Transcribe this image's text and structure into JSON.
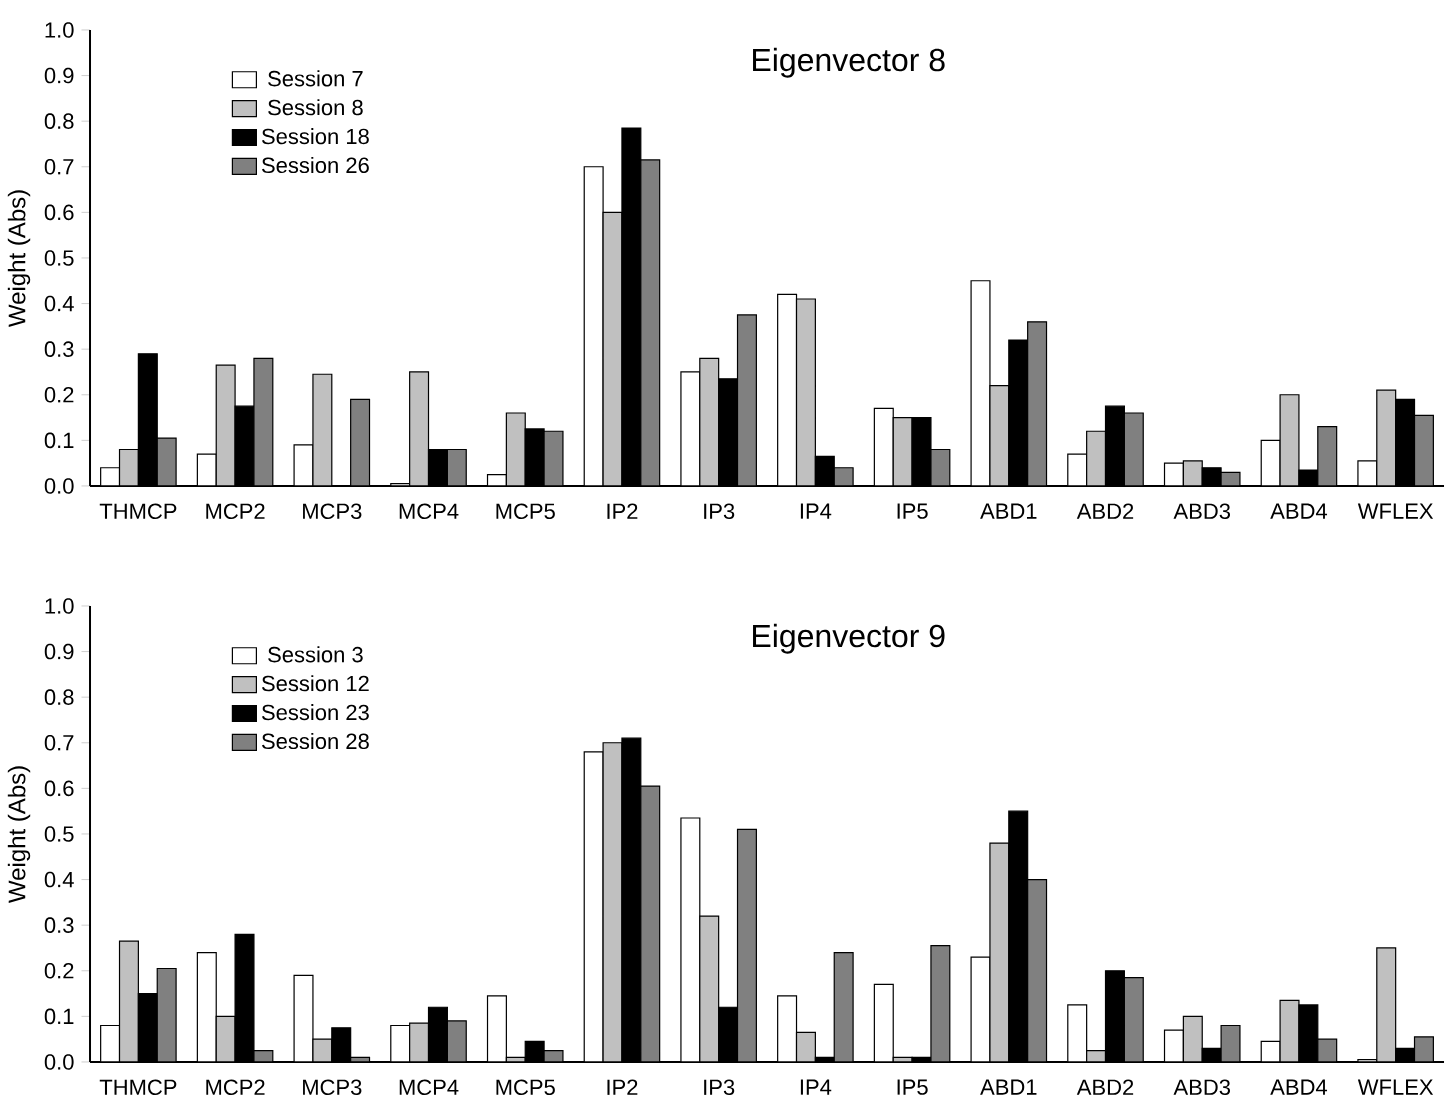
{
  "chart_data": [
    {
      "type": "bar",
      "title": "Eigenvector 8",
      "ylabel": "Weight (Abs)",
      "categories": [
        "THMCP",
        "MCP2",
        "MCP3",
        "MCP4",
        "MCP5",
        "IP2",
        "IP3",
        "IP4",
        "IP5",
        "ABD1",
        "ABD2",
        "ABD3",
        "ABD4",
        "WFLEX"
      ],
      "series": [
        {
          "name": "Session 7",
          "color": "#ffffff",
          "values": [
            0.04,
            0.07,
            0.09,
            0.005,
            0.025,
            0.7,
            0.25,
            0.42,
            0.17,
            0.45,
            0.07,
            0.05,
            0.1,
            0.055
          ]
        },
        {
          "name": "Session 8",
          "color": "#c0c0c0",
          "values": [
            0.08,
            0.265,
            0.245,
            0.25,
            0.16,
            0.6,
            0.28,
            0.41,
            0.15,
            0.22,
            0.12,
            0.055,
            0.2,
            0.21
          ]
        },
        {
          "name": "Session 18",
          "color": "#000000",
          "values": [
            0.29,
            0.175,
            0.0,
            0.08,
            0.125,
            0.785,
            0.235,
            0.065,
            0.15,
            0.32,
            0.175,
            0.04,
            0.035,
            0.19
          ]
        },
        {
          "name": "Session 26",
          "color": "#808080",
          "values": [
            0.105,
            0.28,
            0.19,
            0.08,
            0.12,
            0.715,
            0.375,
            0.04,
            0.08,
            0.36,
            0.16,
            0.03,
            0.13,
            0.155
          ]
        }
      ],
      "ylim": [
        0,
        1.0
      ],
      "yticks": [
        {
          "value": 0,
          "label": "0.0"
        },
        {
          "value": 0.1,
          "label": "0.1"
        },
        {
          "value": 0.2,
          "label": "0.2"
        },
        {
          "value": 0.3,
          "label": "0.3"
        },
        {
          "value": 0.4,
          "label": "0.4"
        },
        {
          "value": 0.5,
          "label": "0.5"
        },
        {
          "value": 0.6,
          "label": "0.6"
        },
        {
          "value": 0.7,
          "label": "0.7"
        },
        {
          "value": 0.8,
          "label": "0.8"
        },
        {
          "value": 0.9,
          "label": "0.9"
        },
        {
          "value": 1.0,
          "label": "1.0"
        }
      ],
      "legend": "top left"
    },
    {
      "type": "bar",
      "title": "Eigenvector 9",
      "ylabel": "Weight (Abs)",
      "categories": [
        "THMCP",
        "MCP2",
        "MCP3",
        "MCP4",
        "MCP5",
        "IP2",
        "IP3",
        "IP4",
        "IP5",
        "ABD1",
        "ABD2",
        "ABD3",
        "ABD4",
        "WFLEX"
      ],
      "series": [
        {
          "name": "Session 3",
          "color": "#ffffff",
          "values": [
            0.08,
            0.24,
            0.19,
            0.08,
            0.145,
            0.68,
            0.535,
            0.145,
            0.17,
            0.23,
            0.125,
            0.07,
            0.045,
            0.005
          ]
        },
        {
          "name": "Session 12",
          "color": "#c0c0c0",
          "values": [
            0.265,
            0.1,
            0.05,
            0.085,
            0.01,
            0.7,
            0.32,
            0.065,
            0.01,
            0.48,
            0.025,
            0.1,
            0.135,
            0.25
          ]
        },
        {
          "name": "Session 23",
          "color": "#000000",
          "values": [
            0.15,
            0.28,
            0.075,
            0.12,
            0.045,
            0.71,
            0.12,
            0.01,
            0.01,
            0.55,
            0.2,
            0.03,
            0.125,
            0.03
          ]
        },
        {
          "name": "Session 28",
          "color": "#808080",
          "values": [
            0.205,
            0.025,
            0.01,
            0.09,
            0.025,
            0.605,
            0.51,
            0.24,
            0.255,
            0.4,
            0.185,
            0.08,
            0.05,
            0.055
          ]
        }
      ],
      "ylim": [
        0,
        1.0
      ],
      "yticks": [
        {
          "value": 0,
          "label": "0.0"
        },
        {
          "value": 0.1,
          "label": "0.1"
        },
        {
          "value": 0.2,
          "label": "0.2"
        },
        {
          "value": 0.3,
          "label": "0.3"
        },
        {
          "value": 0.4,
          "label": "0.4"
        },
        {
          "value": 0.5,
          "label": "0.5"
        },
        {
          "value": 0.6,
          "label": "0.6"
        },
        {
          "value": 0.7,
          "label": "0.7"
        },
        {
          "value": 0.8,
          "label": "0.8"
        },
        {
          "value": 0.9,
          "label": "0.9"
        },
        {
          "value": 1.0,
          "label": "1.0"
        }
      ],
      "legend": "top left"
    }
  ]
}
